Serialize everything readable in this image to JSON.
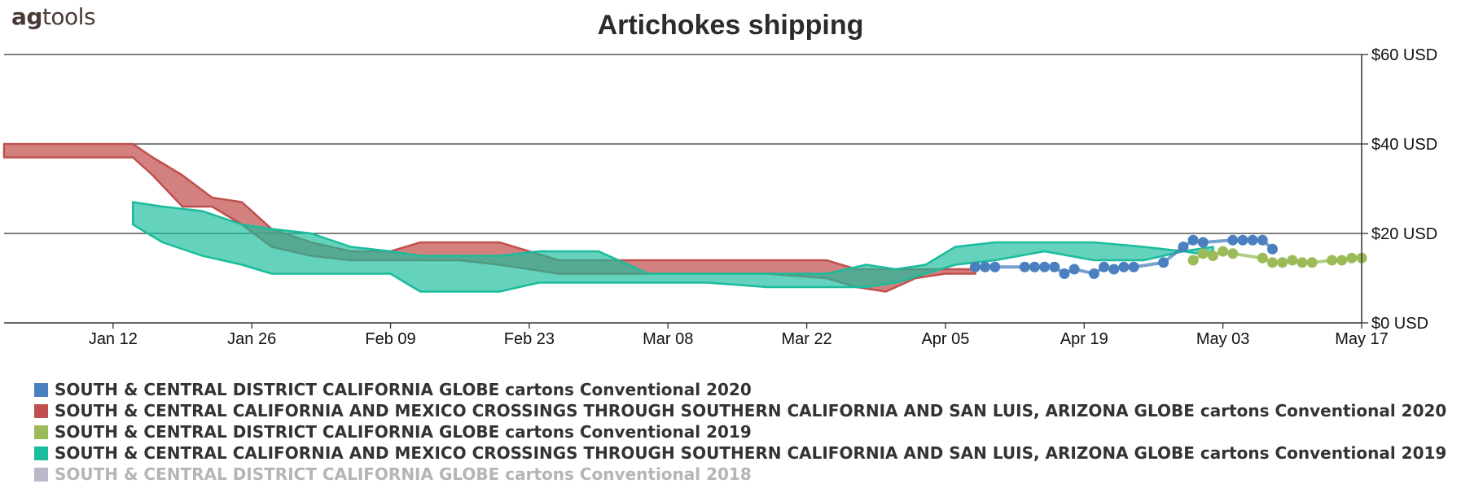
{
  "logo": {
    "bold": "ag",
    "rest": "tools"
  },
  "chart_data": {
    "type": "area",
    "title": "Artichokes shipping",
    "x_axis": {
      "type": "date",
      "min": "2020-01-01",
      "max": "2020-05-17",
      "tick_labels": [
        "Jan 12",
        "Jan 26",
        "Feb 09",
        "Feb 23",
        "Mar 08",
        "Mar 22",
        "Apr 05",
        "Apr 19",
        "May 03",
        "May 17"
      ]
    },
    "y_axis": {
      "min": 0,
      "max": 60,
      "position": "right",
      "tick_values": [
        0,
        20,
        40,
        60
      ],
      "tick_labels": [
        "$0 USD",
        "$20 USD",
        "$40 USD",
        "$60 USD"
      ],
      "grid": true
    },
    "legend_position": "bottom",
    "series": [
      {
        "name": "SOUTH & CENTRAL DISTRICT CALIFORNIA  GLOBE  cartons Conventional 2020",
        "color": "#4a7fc0",
        "kind": "points",
        "visible": true,
        "points": [
          [
            "2020-04-08",
            12.5
          ],
          [
            "2020-04-09",
            12.5
          ],
          [
            "2020-04-10",
            12.5
          ],
          [
            "2020-04-13",
            12.5
          ],
          [
            "2020-04-14",
            12.5
          ],
          [
            "2020-04-15",
            12.5
          ],
          [
            "2020-04-16",
            12.5
          ],
          [
            "2020-04-17",
            11.0
          ],
          [
            "2020-04-18",
            12.0
          ],
          [
            "2020-04-20",
            11.0
          ],
          [
            "2020-04-21",
            12.5
          ],
          [
            "2020-04-22",
            12.0
          ],
          [
            "2020-04-23",
            12.5
          ],
          [
            "2020-04-24",
            12.5
          ],
          [
            "2020-04-27",
            13.5
          ],
          [
            "2020-04-29",
            17.0
          ],
          [
            "2020-04-30",
            18.5
          ],
          [
            "2020-05-01",
            18.0
          ],
          [
            "2020-05-04",
            18.5
          ],
          [
            "2020-05-05",
            18.5
          ],
          [
            "2020-05-06",
            18.5
          ],
          [
            "2020-05-07",
            18.5
          ],
          [
            "2020-05-08",
            16.5
          ]
        ]
      },
      {
        "name": "SOUTH & CENTRAL CALIFORNIA AND MEXICO CROSSINGS THROUGH SOUTHERN CALIFORNIA AND SAN LUIS, ARIZONA  GLOBE  cartons Conventional 2020",
        "color": "#c0504d",
        "kind": "band",
        "visible": true,
        "dates": [
          "2020-01-01",
          "2020-01-08",
          "2020-01-14",
          "2020-01-16",
          "2020-01-19",
          "2020-01-22",
          "2020-01-25",
          "2020-01-28",
          "2020-02-01",
          "2020-02-05",
          "2020-02-09",
          "2020-02-12",
          "2020-02-16",
          "2020-02-20",
          "2020-02-26",
          "2020-03-01",
          "2020-03-06",
          "2020-03-12",
          "2020-03-18",
          "2020-03-24",
          "2020-03-27",
          "2020-03-30",
          "2020-04-02",
          "2020-04-05",
          "2020-04-08"
        ],
        "low": [
          37,
          37,
          37,
          33,
          26,
          26,
          22,
          17,
          15,
          14,
          14,
          14,
          14,
          13,
          11,
          11,
          11,
          11,
          11,
          10,
          8,
          7,
          10,
          11,
          11
        ],
        "high": [
          40,
          40,
          40,
          37,
          33,
          28,
          27,
          21,
          18,
          16,
          16,
          18,
          18,
          18,
          14,
          14,
          14,
          14,
          14,
          14,
          12,
          12,
          12,
          12,
          12
        ]
      },
      {
        "name": "SOUTH & CENTRAL DISTRICT CALIFORNIA  GLOBE  cartons Conventional 2019",
        "color": "#9bbb59",
        "kind": "points",
        "visible": true,
        "points": [
          [
            "2020-04-30",
            14.0
          ],
          [
            "2020-05-01",
            15.5
          ],
          [
            "2020-05-02",
            15.0
          ],
          [
            "2020-05-03",
            16.0
          ],
          [
            "2020-05-04",
            15.5
          ],
          [
            "2020-05-07",
            14.5
          ],
          [
            "2020-05-08",
            13.5
          ],
          [
            "2020-05-09",
            13.5
          ],
          [
            "2020-05-10",
            14.0
          ],
          [
            "2020-05-11",
            13.5
          ],
          [
            "2020-05-12",
            13.5
          ],
          [
            "2020-05-14",
            14.0
          ],
          [
            "2020-05-15",
            14.0
          ],
          [
            "2020-05-16",
            14.5
          ],
          [
            "2020-05-17",
            14.5
          ]
        ]
      },
      {
        "name": "SOUTH & CENTRAL CALIFORNIA AND MEXICO CROSSINGS THROUGH SOUTHERN CALIFORNIA AND SAN LUIS, ARIZONA  GLOBE  cartons Conventional 2019",
        "color": "#1abc9c",
        "kind": "band",
        "visible": true,
        "dates": [
          "2020-01-14",
          "2020-01-17",
          "2020-01-21",
          "2020-01-25",
          "2020-01-28",
          "2020-02-01",
          "2020-02-05",
          "2020-02-09",
          "2020-02-12",
          "2020-02-16",
          "2020-02-20",
          "2020-02-24",
          "2020-03-01",
          "2020-03-06",
          "2020-03-12",
          "2020-03-18",
          "2020-03-24",
          "2020-03-28",
          "2020-03-31",
          "2020-04-03",
          "2020-04-06",
          "2020-04-10",
          "2020-04-15",
          "2020-04-20",
          "2020-04-25",
          "2020-04-29",
          "2020-05-02"
        ],
        "low": [
          22,
          18,
          15,
          13,
          11,
          11,
          11,
          11,
          7,
          7,
          7,
          9,
          9,
          9,
          9,
          8,
          8,
          8,
          9,
          11,
          13,
          14,
          16,
          14,
          14,
          16,
          15
        ],
        "high": [
          27,
          26,
          25,
          22,
          21,
          20,
          17,
          16,
          15,
          15,
          15,
          16,
          16,
          11,
          11,
          11,
          11,
          13,
          12,
          13,
          17,
          18,
          18,
          18,
          17,
          16,
          17
        ]
      },
      {
        "name": "SOUTH & CENTRAL DISTRICT CALIFORNIA  GLOBE  cartons Conventional 2018",
        "color": "#b8b8c8",
        "kind": "points",
        "visible": false,
        "points": []
      }
    ]
  }
}
